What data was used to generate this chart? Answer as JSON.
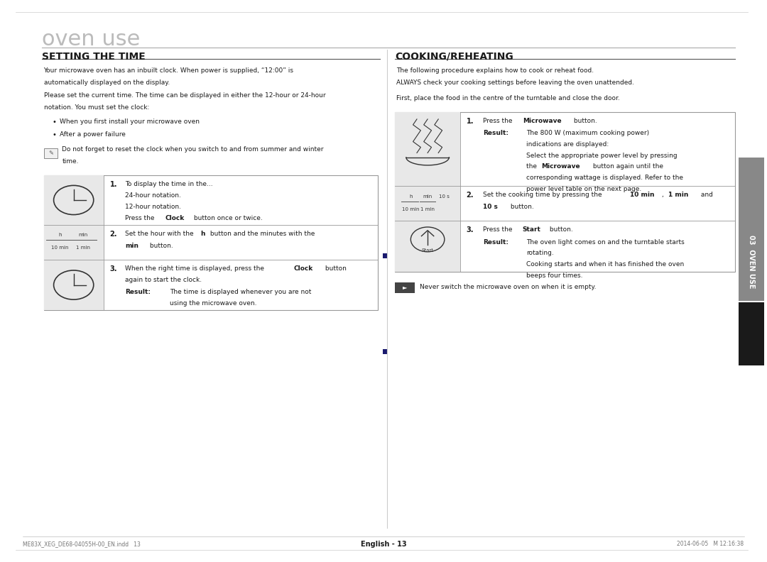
{
  "bg_color": "#ffffff",
  "title_heading": "oven use",
  "left_section_title": "SETTING THE TIME",
  "right_section_title": "COOKING/REHEATING",
  "left_intro": [
    "Your microwave oven has an inbuilt clock. When power is supplied, “12:00” is",
    "automatically displayed on the display.",
    "Please set the current time. The time can be displayed in either the 12-hour or 24-hour",
    "notation. You must set the clock:"
  ],
  "left_bullets": [
    "When you first install your microwave oven",
    "After a power failure"
  ],
  "left_note_line1": "Do not forget to reset the clock when you switch to and from summer and winter",
  "left_note_line2": "time.",
  "right_intro_line1": "The following procedure explains how to cook or reheat food.",
  "right_intro_line2": "ALWAYS check your cooking settings before leaving the oven unattended.",
  "right_intro2": "First, place the food in the centre of the turntable and close the door.",
  "footer_left": "ME83X_XEG_DE68-04055H-00_EN.indd   13",
  "footer_right": "2014-06-05   М 12:16:38",
  "footer_center": "English - 13",
  "sidebar_text": "03  OVEN USE",
  "table_bg": "#e8e8e8",
  "table_border": "#999999",
  "text_color": "#1a1a1a",
  "sidebar_bg": "#888888",
  "sidebar_black": "#1a1a1a"
}
